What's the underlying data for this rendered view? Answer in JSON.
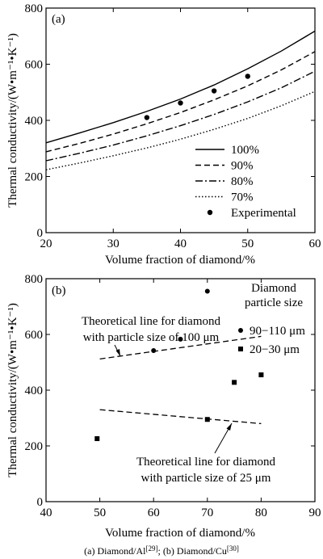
{
  "chart_data": [
    {
      "type": "line",
      "panel_label": "(a)",
      "xlabel": "Volume fraction of diamond/%",
      "ylabel": "Thermal conductivity/(W•m⁻¹•K⁻¹)",
      "xlim": [
        20,
        60
      ],
      "ylim": [
        0,
        800
      ],
      "xticks": [
        20,
        30,
        40,
        50,
        60
      ],
      "yticks": [
        0,
        200,
        400,
        600,
        800
      ],
      "x": [
        20,
        25,
        30,
        35,
        40,
        45,
        50,
        55,
        60
      ],
      "series": [
        {
          "name": "100%",
          "style": "solid",
          "values": [
            320,
            355,
            392,
            432,
            476,
            526,
            584,
            647,
            718
          ]
        },
        {
          "name": "90%",
          "style": "dashed",
          "values": [
            288,
            318,
            351,
            388,
            428,
            473,
            523,
            580,
            645
          ]
        },
        {
          "name": "80%",
          "style": "dashdot",
          "values": [
            256,
            283,
            312,
            345,
            381,
            421,
            466,
            516,
            575
          ]
        },
        {
          "name": "70%",
          "style": "dotted",
          "values": [
            224,
            248,
            274,
            302,
            333,
            368,
            407,
            452,
            503
          ]
        }
      ],
      "points": {
        "name": "Experimental",
        "x": [
          35,
          40,
          45,
          50
        ],
        "y": [
          410,
          462,
          505,
          557
        ]
      },
      "legend": "lower-right",
      "grid": false
    },
    {
      "type": "scatter",
      "panel_label": "(b)",
      "xlabel": "Volume fraction of diamond/%",
      "ylabel": "Thermal conductivity/(W•m⁻¹•K⁻¹)",
      "xlim": [
        40,
        90
      ],
      "ylim": [
        0,
        800
      ],
      "xticks": [
        40,
        50,
        60,
        70,
        80,
        90
      ],
      "yticks": [
        0,
        200,
        400,
        600,
        800
      ],
      "legend_title": [
        "Diamond",
        "particle size"
      ],
      "series": [
        {
          "name": "90−110 μm",
          "marker": "circle",
          "x": [
            60,
            65,
            70
          ],
          "y": [
            542,
            583,
            755
          ]
        },
        {
          "name": "20−30 μm",
          "marker": "square",
          "x": [
            49.5,
            70,
            75,
            80
          ],
          "y": [
            226,
            295,
            428,
            455
          ]
        }
      ],
      "lines": [
        {
          "x": [
            50,
            80
          ],
          "y": [
            512,
            593
          ],
          "style": "dashed"
        },
        {
          "x": [
            50,
            80
          ],
          "y": [
            330,
            280
          ],
          "style": "dashed"
        }
      ],
      "annotations": [
        [
          "Theoretical line for diamond",
          "with particle size of 100 μm"
        ],
        [
          "Theoretical line for diamond",
          "with particle size of 25 μm"
        ]
      ],
      "legend": "top-right",
      "grid": false
    }
  ],
  "caption": {
    "part_a": "(a) Diamond/Al",
    "ref_a": "[29]",
    "sep": "; ",
    "part_b": "(b) Diamond/Cu",
    "ref_b": "[30]"
  }
}
